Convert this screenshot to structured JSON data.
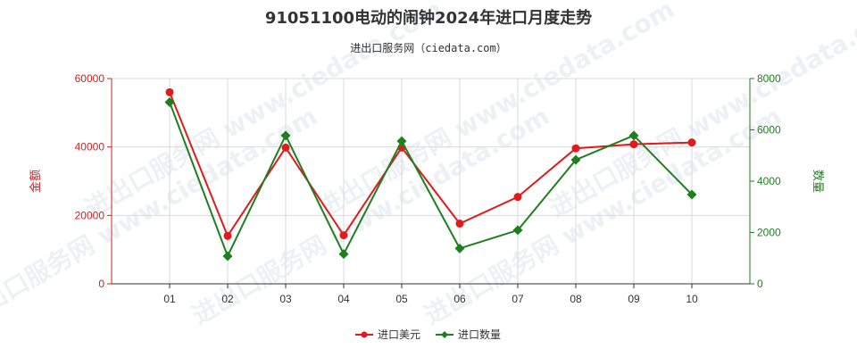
{
  "chart_data": {
    "type": "line",
    "title": "91051100电动的闹钟2024年进口月度走势",
    "subtitle": "进出口服务网（ciedata.com）",
    "watermark": "进出口服务网 www.ciedata.com",
    "categories": [
      "01",
      "02",
      "03",
      "04",
      "05",
      "06",
      "07",
      "08",
      "09",
      "10"
    ],
    "y_left": {
      "label": "金额",
      "range": [
        0,
        60000
      ],
      "ticks": [
        0,
        20000,
        40000,
        60000
      ],
      "color": "#d71f1f"
    },
    "y_right": {
      "label": "数量",
      "range": [
        0,
        8000
      ],
      "ticks": [
        0,
        2000,
        4000,
        6000,
        8000
      ],
      "color": "#1f7f1f"
    },
    "series": [
      {
        "name": "进口美元",
        "axis": "left",
        "color": "#e31a1c",
        "marker": "circle",
        "values": [
          56000,
          14000,
          39800,
          14200,
          39800,
          17600,
          25400,
          39600,
          40800,
          41300
        ]
      },
      {
        "name": "进口数量",
        "axis": "right",
        "color": "#1f7f1f",
        "marker": "diamond",
        "values": [
          7080,
          1080,
          5780,
          1160,
          5560,
          1380,
          2090,
          4830,
          5780,
          3480
        ]
      }
    ],
    "grid": true,
    "legend_position": "bottom-center"
  }
}
